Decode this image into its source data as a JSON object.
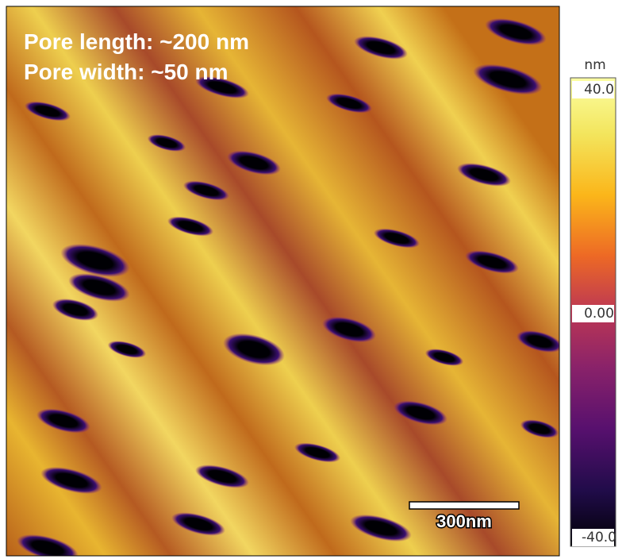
{
  "image": {
    "annotations": [
      "Pore length: ~200 nm",
      "Pore width: ~50 nm"
    ],
    "scale_bar": "300nm"
  },
  "colorbar": {
    "unit": "nm",
    "range": [
      -40,
      40
    ],
    "ticks": [
      {
        "value": 40,
        "label": "40.0"
      },
      {
        "value": 0,
        "label": "0.00"
      },
      {
        "value": -40,
        "label": "-40.0"
      }
    ]
  }
}
